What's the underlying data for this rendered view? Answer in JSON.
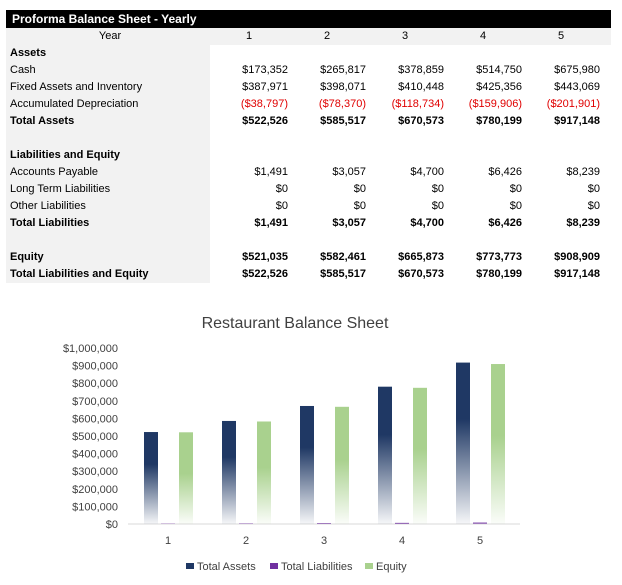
{
  "table": {
    "title": "Proforma Balance Sheet - Yearly",
    "year_label": "Year",
    "years": [
      "1",
      "2",
      "3",
      "4",
      "5"
    ],
    "rows": [
      {
        "label": "Assets",
        "bold": true,
        "values": [
          "",
          "",
          "",
          "",
          ""
        ]
      },
      {
        "label": "Cash",
        "values": [
          "$173,352",
          "$265,817",
          "$378,859",
          "$514,750",
          "$675,980"
        ]
      },
      {
        "label": "Fixed Assets and Inventory",
        "values": [
          "$387,971",
          "$398,071",
          "$410,448",
          "$425,356",
          "$443,069"
        ]
      },
      {
        "label": "Accumulated Depreciation",
        "negative": true,
        "values": [
          "($38,797)",
          "($78,370)",
          "($118,734)",
          "($159,906)",
          "($201,901)"
        ]
      },
      {
        "label": "Total Assets",
        "bold": true,
        "values": [
          "$522,526",
          "$585,517",
          "$670,573",
          "$780,199",
          "$917,148"
        ]
      },
      {
        "label": "",
        "values": [
          "",
          "",
          "",
          "",
          ""
        ]
      },
      {
        "label": "Liabilities and Equity",
        "bold": true,
        "values": [
          "",
          "",
          "",
          "",
          ""
        ]
      },
      {
        "label": "Accounts Payable",
        "values": [
          "$1,491",
          "$3,057",
          "$4,700",
          "$6,426",
          "$8,239"
        ]
      },
      {
        "label": "Long Term Liabilities",
        "values": [
          "$0",
          "$0",
          "$0",
          "$0",
          "$0"
        ]
      },
      {
        "label": "Other Liabilities",
        "values": [
          "$0",
          "$0",
          "$0",
          "$0",
          "$0"
        ]
      },
      {
        "label": "Total Liabilities",
        "bold": true,
        "values": [
          "$1,491",
          "$3,057",
          "$4,700",
          "$6,426",
          "$8,239"
        ]
      },
      {
        "label": "",
        "values": [
          "",
          "",
          "",
          "",
          ""
        ]
      },
      {
        "label": "Equity",
        "bold": true,
        "values": [
          "$521,035",
          "$582,461",
          "$665,873",
          "$773,773",
          "$908,909"
        ]
      },
      {
        "label": "Total Liabilities and Equity",
        "bold": true,
        "values": [
          "$522,526",
          "$585,517",
          "$670,573",
          "$780,199",
          "$917,148"
        ]
      }
    ]
  },
  "chart_data": {
    "type": "bar",
    "title": "Restaurant Balance Sheet",
    "categories": [
      "1",
      "2",
      "3",
      "4",
      "5"
    ],
    "series": [
      {
        "name": "Total Assets",
        "color": "#1f3864",
        "values": [
          522526,
          585517,
          670573,
          780199,
          917148
        ]
      },
      {
        "name": "Total Liabilities",
        "color": "#7030a0",
        "values": [
          1491,
          3057,
          4700,
          6426,
          8239
        ]
      },
      {
        "name": "Equity",
        "color": "#a9d18e",
        "values": [
          521035,
          582461,
          665873,
          773773,
          908909
        ]
      }
    ],
    "ylim": [
      0,
      1000000
    ],
    "yticks": [
      "$0",
      "$100,000",
      "$200,000",
      "$300,000",
      "$400,000",
      "$500,000",
      "$600,000",
      "$700,000",
      "$800,000",
      "$900,000",
      "$1,000,000"
    ],
    "legend": "bottom",
    "grid": false
  }
}
